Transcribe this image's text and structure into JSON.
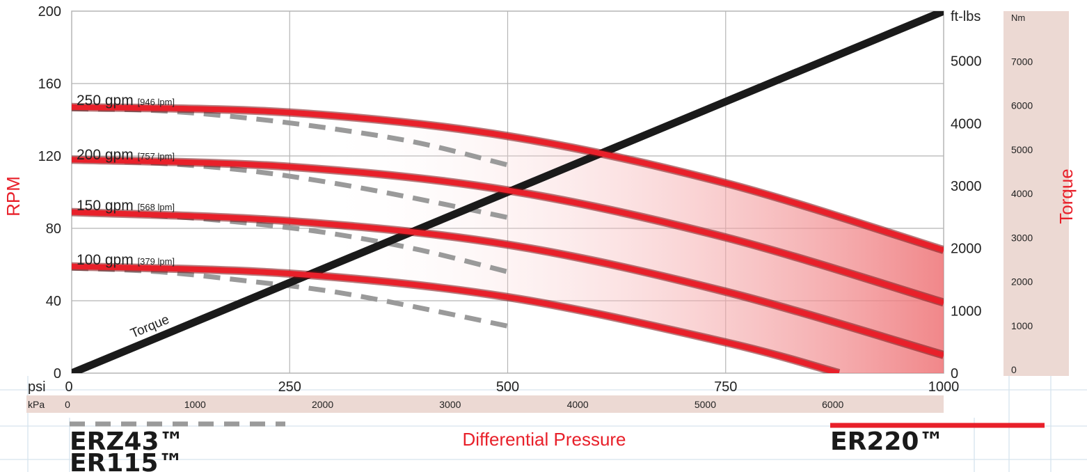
{
  "chart_data": {
    "type": "line",
    "xlabel": "Differential Pressure",
    "ylabel": "RPM",
    "y2label": "Torque",
    "x_unit": "psi",
    "x_unit_secondary": "kPa",
    "y2_unit": "ft-lbs",
    "y3_unit": "Nm",
    "xlim": [
      0,
      1000
    ],
    "ylim": [
      0,
      200
    ],
    "y2lim": [
      0,
      5800
    ],
    "x_ticks": [
      "0",
      "250",
      "500",
      "750",
      "1000"
    ],
    "x_tick_values": [
      0,
      250,
      500,
      750,
      1000
    ],
    "kpa_ticks": [
      "0",
      "1000",
      "2000",
      "3000",
      "4000",
      "5000",
      "6000"
    ],
    "kpa_tick_values": [
      0,
      1000,
      2000,
      3000,
      4000,
      5000,
      6000
    ],
    "y_ticks": [
      "0",
      "40",
      "80",
      "120",
      "160",
      "200"
    ],
    "y_tick_values": [
      0,
      40,
      80,
      120,
      160,
      200
    ],
    "y2_ticks": [
      "0",
      "1000",
      "2000",
      "3000",
      "4000",
      "5000"
    ],
    "y2_tick_values": [
      0,
      1000,
      2000,
      3000,
      4000,
      5000
    ],
    "y3_ticks": [
      "0",
      "1000",
      "2000",
      "3000",
      "4000",
      "5000",
      "6000",
      "7000"
    ],
    "y3_tick_values": [
      0,
      1000,
      2000,
      3000,
      4000,
      5000,
      6000,
      7000
    ],
    "grid": true,
    "torque_label": "Torque",
    "torque_line": {
      "x": [
        0,
        1000
      ],
      "y_ftlbs": [
        0,
        5800
      ]
    },
    "series": [
      {
        "name": "250 gpm",
        "name_sub": "[946 lpm]",
        "label_y": 150,
        "x": [
          0,
          250,
          500,
          750,
          1000
        ],
        "y": [
          147,
          144,
          131,
          105,
          68
        ],
        "dashed_x": [
          0,
          100,
          200,
          300,
          400,
          500
        ],
        "dashed_y": [
          146,
          145,
          141,
          135,
          127,
          115
        ]
      },
      {
        "name": "200 gpm",
        "name_sub": "[757 lpm]",
        "label_y": 120,
        "x": [
          0,
          250,
          500,
          750,
          1000
        ],
        "y": [
          118,
          114,
          101,
          75,
          39
        ],
        "dashed_x": [
          0,
          100,
          200,
          300,
          400,
          500
        ],
        "dashed_y": [
          118,
          116,
          112,
          105,
          96,
          86
        ]
      },
      {
        "name": "150 gpm",
        "name_sub": "[568 lpm]",
        "label_y": 92,
        "x": [
          0,
          250,
          500,
          750,
          1000
        ],
        "y": [
          89,
          84,
          71,
          45,
          10
        ],
        "dashed_x": [
          0,
          100,
          200,
          300,
          400,
          500
        ],
        "dashed_y": [
          89,
          87,
          83,
          77,
          68,
          56
        ]
      },
      {
        "name": "100 gpm",
        "name_sub": "[379 lpm]",
        "label_y": 62,
        "x": [
          0,
          250,
          500,
          750,
          880
        ],
        "y": [
          59,
          55,
          42,
          17,
          0
        ],
        "dashed_x": [
          0,
          100,
          200,
          300,
          400,
          500
        ],
        "dashed_y": [
          58,
          56,
          51,
          45,
          36,
          26
        ]
      }
    ],
    "legend": [
      {
        "style": "dashed-gray",
        "models": [
          "ERZ43™",
          "ER115™"
        ]
      },
      {
        "style": "solid-red",
        "models": [
          "ER220™"
        ]
      }
    ]
  },
  "colors": {
    "red": "#e8202a",
    "dashed_gray": "#9a9a9a",
    "torque_line": "#1a1a1a",
    "grid": "#b5b5b5",
    "band": "#ecd9d3"
  }
}
